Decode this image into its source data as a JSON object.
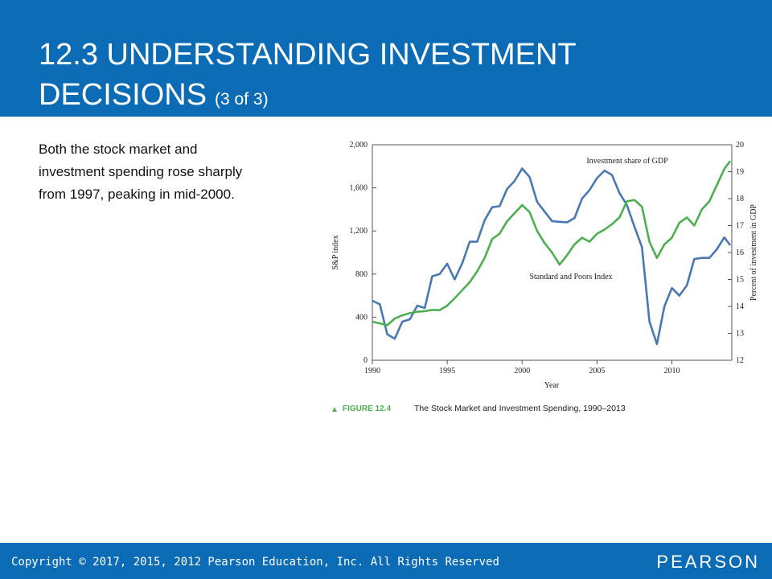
{
  "slide": {
    "title_line1": "12.3 UNDERSTANDING INVESTMENT",
    "title_line2": "DECISIONS",
    "title_suffix": "(3 of 3)",
    "body": [
      "Both the stock market and",
      "investment spending rose sharply",
      "from 1997, peaking in mid-2000."
    ],
    "footer": "Copyright © 2017, 2015, 2012 Pearson Education, Inc. All Rights Reserved",
    "logo": "PEARSON"
  },
  "chart_data": {
    "type": "line",
    "figure_label": "FIGURE 12.4",
    "caption": "The Stock Market and Investment Spending, 1990–2013",
    "xlabel": "Year",
    "ylabel": "S&P index",
    "y2label": "Percent of investment in GDP",
    "annotations": [
      "Investment share of GDP",
      "Standard and Poors Index"
    ],
    "x": [
      1990,
      1990.5,
      1991,
      1991.5,
      1992,
      1992.5,
      1993,
      1993.5,
      1994,
      1994.5,
      1995,
      1995.5,
      1996,
      1996.5,
      1997,
      1997.5,
      1998,
      1998.5,
      1999,
      1999.5,
      2000,
      2000.5,
      2001,
      2001.5,
      2002,
      2002.5,
      2003,
      2003.5,
      2004,
      2004.5,
      2005,
      2005.5,
      2006,
      2006.5,
      2007,
      2007.5,
      2008,
      2008.5,
      2009,
      2009.5,
      2010,
      2010.5,
      2011,
      2011.5,
      2012,
      2012.5,
      2013,
      2013.5,
      2013.9
    ],
    "series": [
      {
        "name": "Standard and Poors Index",
        "color": "#4a78b4",
        "values": [
          552,
          520,
          240,
          200,
          358,
          380,
          507,
          485,
          780,
          800,
          896,
          750,
          900,
          1100,
          1100,
          1300,
          1420,
          1430,
          1590,
          1664,
          1780,
          1700,
          1470,
          1380,
          1290,
          1285,
          1280,
          1320,
          1500,
          1580,
          1690,
          1760,
          1720,
          1552,
          1440,
          1240,
          1050,
          360,
          150,
          500,
          670,
          600,
          694,
          940,
          950,
          950,
          1030,
          1140,
          1067
        ]
      },
      {
        "name": "Investment share of GDP",
        "color": "#4caf50",
        "axis": "y2",
        "values": [
          13.43,
          13.37,
          13.3,
          13.55,
          13.67,
          13.75,
          13.8,
          13.82,
          13.87,
          13.86,
          14.03,
          14.3,
          14.6,
          14.9,
          15.3,
          15.8,
          16.5,
          16.7,
          17.16,
          17.46,
          17.76,
          17.5,
          16.8,
          16.35,
          16.0,
          15.55,
          15.9,
          16.3,
          16.55,
          16.4,
          16.7,
          16.85,
          17.05,
          17.3,
          17.9,
          17.95,
          17.7,
          16.4,
          15.8,
          16.3,
          16.55,
          17.1,
          17.3,
          17.0,
          17.6,
          17.9,
          18.5,
          19.1,
          19.4
        ]
      }
    ],
    "xlim": [
      1990,
      2014
    ],
    "xticks": [
      1990,
      1995,
      2000,
      2005,
      2010
    ],
    "ylim": [
      0,
      2000
    ],
    "yticks": [
      0,
      400,
      800,
      {
        "value": 1200,
        "label": "1,200"
      },
      {
        "value": 1600,
        "label": "1,600"
      },
      {
        "value": 2000,
        "label": "2,000"
      }
    ],
    "y2lim": [
      12,
      20
    ],
    "y2ticks": [
      12,
      13,
      14,
      15,
      16,
      17,
      18,
      19,
      20
    ]
  }
}
